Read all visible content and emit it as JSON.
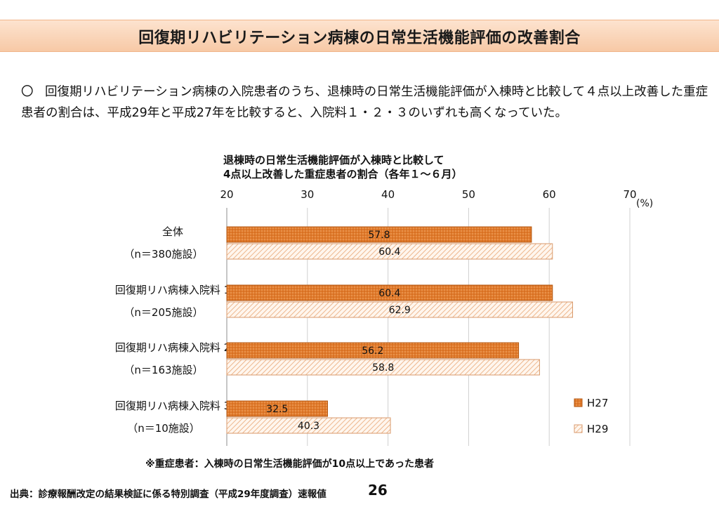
{
  "header": {
    "title": "回復期リハビリテーション病棟の日常生活機能評価の改善割合"
  },
  "lead": {
    "mark": "〇",
    "text": "回復期リハビリテーション病棟の入院患者のうち、退棟時の日常生活機能評価が入棟時と比較して４点以上改善した重症患者の割合は、平成29年と平成27年を比較すると、入院料１・２・３のいずれも高くなっていた。"
  },
  "chart_data": {
    "type": "bar",
    "orientation": "horizontal",
    "title_lines": [
      "退棟時の日常生活機能評価が入棟時と比較して",
      "4点以上改善した重症患者の割合（各年１～６月）"
    ],
    "unit_label": "(%)",
    "xlim": [
      20,
      70
    ],
    "ticks": [
      "20",
      "30",
      "40",
      "50",
      "60",
      "70"
    ],
    "categories": [
      {
        "name": "全体",
        "n": "（n＝380施設）"
      },
      {
        "name": "回復期リハ病棟入院料 1",
        "n": "（n＝205施設）"
      },
      {
        "name": "回復期リハ病棟入院料 2",
        "n": "（n＝163施設）"
      },
      {
        "name": "回復期リハ病棟入院料 3",
        "n": "（n＝10施設）"
      }
    ],
    "series": [
      {
        "name": "H27",
        "values": [
          57.8,
          60.4,
          56.2,
          32.5
        ],
        "color": "#e07b2c",
        "pattern": "dots"
      },
      {
        "name": "H29",
        "values": [
          60.4,
          62.9,
          58.8,
          40.3
        ],
        "color": "#fbe3cf",
        "pattern": "diagonal"
      }
    ],
    "legend_position": "right",
    "grid": true
  },
  "footer": {
    "note": "※重症患者：入棟時の日常生活機能評価が10点以上であった患者",
    "source": "出典：診療報酬改定の結果検証に係る特別調査（平成29年度調査）速報値",
    "page_number": "26"
  }
}
